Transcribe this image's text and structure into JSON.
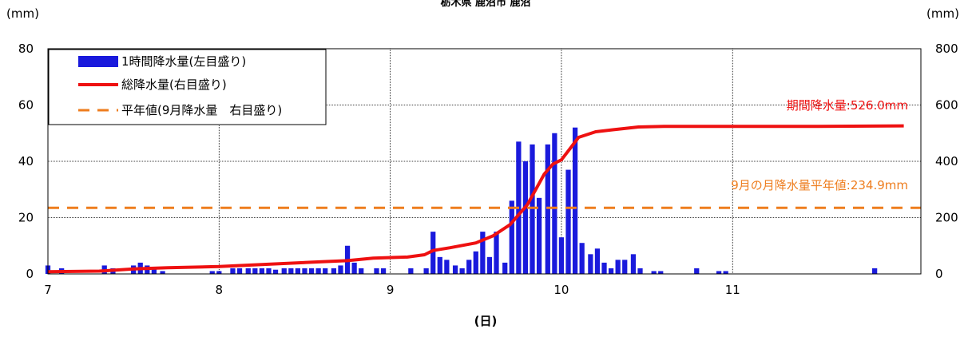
{
  "chart_data": {
    "type": "bar",
    "title": "栃木県 鹿沼市 鹿沼",
    "y_left_unit": "(mm)",
    "y_right_unit": "(mm)",
    "xlabel": "(日)",
    "x_ticks": [
      "7",
      "8",
      "9",
      "10",
      "11"
    ],
    "x_range": [
      7,
      12.1
    ],
    "y_left": {
      "range": [
        0,
        80
      ],
      "ticks": [
        "0",
        "20",
        "40",
        "60",
        "80"
      ]
    },
    "y_right": {
      "range": [
        0,
        800
      ],
      "ticks": [
        "0",
        "200",
        "400",
        "600",
        "800"
      ]
    },
    "legend": {
      "position": "top-left",
      "items": [
        {
          "label": "1時間降水量(左目盛り)",
          "kind": "bar",
          "color": "#1a1adc"
        },
        {
          "label": "総降水量(右目盛り)",
          "kind": "line",
          "color": "#ee1111"
        },
        {
          "label": "平年値(9月降水量　右目盛り)",
          "kind": "dashed",
          "color": "#ee7d1e"
        }
      ]
    },
    "series": [
      {
        "name": "1時間降水量(左目盛り)",
        "axis": "left",
        "x_day": [
          7.0,
          7.08,
          7.33,
          7.38,
          7.5,
          7.54,
          7.58,
          7.62,
          7.67,
          7.96,
          8.0,
          8.08,
          8.12,
          8.17,
          8.21,
          8.25,
          8.29,
          8.33,
          8.38,
          8.42,
          8.46,
          8.5,
          8.54,
          8.58,
          8.62,
          8.67,
          8.71,
          8.75,
          8.79,
          8.83,
          8.92,
          8.96,
          9.12,
          9.21,
          9.25,
          9.29,
          9.33,
          9.38,
          9.42,
          9.46,
          9.5,
          9.54,
          9.58,
          9.62,
          9.67,
          9.71,
          9.75,
          9.79,
          9.83,
          9.87,
          9.92,
          9.96,
          10.0,
          10.04,
          10.08,
          10.12,
          10.17,
          10.21,
          10.25,
          10.29,
          10.33,
          10.37,
          10.42,
          10.46,
          10.54,
          10.58,
          10.79,
          10.92,
          10.96,
          11.83
        ],
        "values": [
          3,
          2,
          3,
          2,
          3,
          4,
          3,
          2,
          1,
          1,
          1,
          2,
          2,
          2,
          2,
          2,
          2,
          1.5,
          2,
          2,
          2,
          2,
          2,
          2,
          2,
          2,
          3,
          10,
          4,
          2,
          2,
          2,
          2,
          2,
          15,
          6,
          5,
          3,
          2,
          5,
          8,
          15,
          6,
          15,
          4,
          26,
          47,
          40,
          46,
          27,
          46,
          50,
          13,
          37,
          52,
          11,
          7,
          9,
          4,
          2,
          5,
          5,
          7,
          2,
          1,
          1,
          2,
          1,
          1,
          2
        ],
        "color": "#1a1adc"
      },
      {
        "name": "総降水量(右目盛り)",
        "axis": "right",
        "x_day": [
          7.0,
          7.3,
          7.5,
          7.7,
          8.0,
          8.3,
          8.6,
          8.75,
          8.9,
          9.1,
          9.2,
          9.25,
          9.35,
          9.5,
          9.6,
          9.7,
          9.8,
          9.85,
          9.9,
          9.95,
          10.0,
          10.05,
          10.1,
          10.2,
          10.3,
          10.45,
          10.6,
          11.0,
          11.5,
          12.0
        ],
        "values": [
          8,
          10,
          18,
          22,
          26,
          35,
          43,
          47,
          56,
          60,
          68,
          83,
          93,
          110,
          135,
          175,
          245,
          300,
          355,
          390,
          405,
          445,
          485,
          505,
          512,
          522,
          524,
          524,
          524,
          526
        ],
        "color": "#ee1111"
      },
      {
        "name": "平年値(9月降水量　右目盛り)",
        "axis": "right",
        "constant": 234.9,
        "color": "#ee7d1e"
      }
    ],
    "annotations": [
      {
        "text": "期間降水量:526.0mm",
        "color": "#ee1111"
      },
      {
        "text": "9月の月降水量平年値:234.9mm",
        "color": "#ee7d1e"
      }
    ],
    "grid": true
  }
}
